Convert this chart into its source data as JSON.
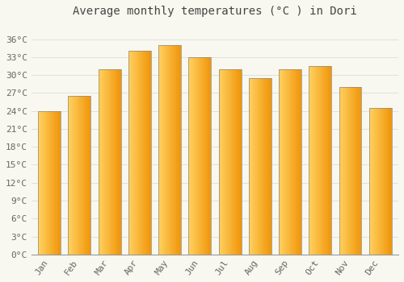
{
  "title": "Average monthly temperatures (°C ) in Dori",
  "months": [
    "Jan",
    "Feb",
    "Mar",
    "Apr",
    "May",
    "Jun",
    "Jul",
    "Aug",
    "Sep",
    "Oct",
    "Nov",
    "Dec"
  ],
  "values": [
    24,
    26.5,
    31,
    34,
    35,
    33,
    31,
    29.5,
    31,
    31.5,
    28,
    24.5
  ],
  "bar_color_main": "#FFAA00",
  "bar_color_left": "#FFD060",
  "bar_color_right": "#F5A000",
  "bar_edge_color": "#888888",
  "background_color": "#F8F8F0",
  "plot_bg_color": "#F8F8F0",
  "grid_color": "#E0E0E0",
  "title_color": "#444444",
  "tick_label_color": "#666666",
  "ylim": [
    0,
    39
  ],
  "yticks": [
    0,
    3,
    6,
    9,
    12,
    15,
    18,
    21,
    24,
    27,
    30,
    33,
    36
  ],
  "ytick_labels": [
    "0°C",
    "3°C",
    "6°C",
    "9°C",
    "12°C",
    "15°C",
    "18°C",
    "21°C",
    "24°C",
    "27°C",
    "30°C",
    "33°C",
    "36°C"
  ],
  "title_fontsize": 10,
  "tick_fontsize": 8,
  "font_family": "monospace",
  "bar_width": 0.75
}
